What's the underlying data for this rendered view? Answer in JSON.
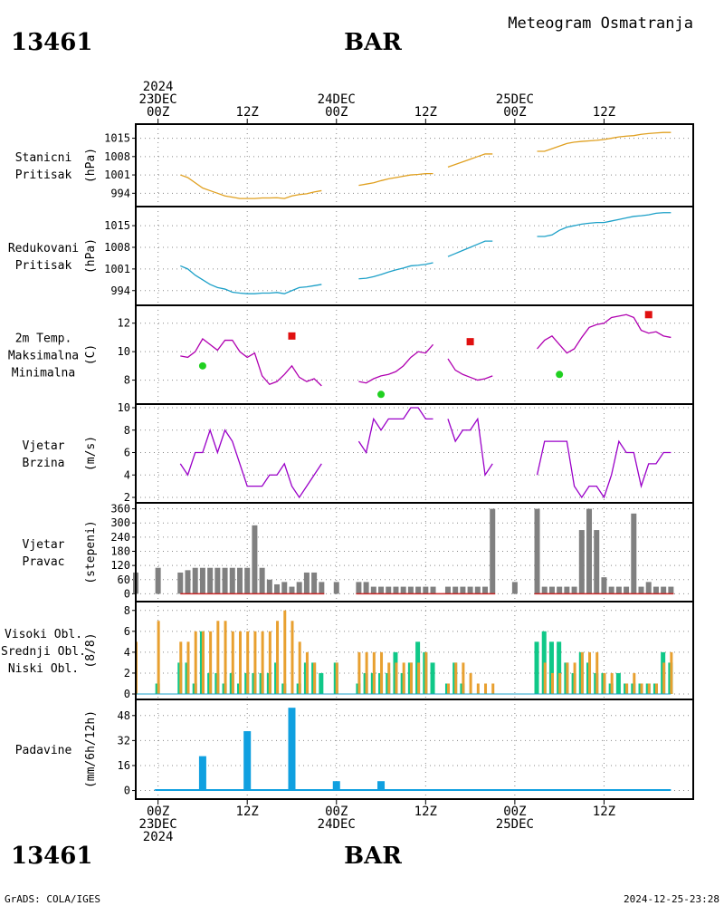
{
  "header": {
    "station_id": "13461",
    "station_name": "BAR",
    "title": "Meteogram Osmatranja"
  },
  "footer": {
    "station_id": "13461",
    "station_name": "BAR",
    "credit": "GrADS: COLA/IGES",
    "timestamp": "2024-12-25-23:28"
  },
  "time_axis": {
    "top_labels": [
      {
        "hour": 0,
        "lines": [
          "2024",
          "23DEC",
          "00Z"
        ]
      },
      {
        "hour": 12,
        "lines": [
          "12Z"
        ]
      },
      {
        "hour": 24,
        "lines": [
          "24DEC",
          "00Z"
        ]
      },
      {
        "hour": 36,
        "lines": [
          "12Z"
        ]
      },
      {
        "hour": 48,
        "lines": [
          "25DEC",
          "00Z"
        ]
      },
      {
        "hour": 60,
        "lines": [
          "12Z"
        ]
      }
    ],
    "bottom_labels": [
      {
        "hour": 0,
        "lines": [
          "00Z",
          "23DEC",
          "2024"
        ]
      },
      {
        "hour": 12,
        "lines": [
          "12Z"
        ]
      },
      {
        "hour": 24,
        "lines": [
          "00Z",
          "24DEC"
        ]
      },
      {
        "hour": 36,
        "lines": [
          "12Z"
        ]
      },
      {
        "hour": 48,
        "lines": [
          "00Z",
          "25DEC"
        ]
      },
      {
        "hour": 60,
        "lines": [
          "12Z"
        ]
      }
    ]
  },
  "colors": {
    "pressure_station": "#e0a020",
    "pressure_reduced": "#1ca0c8",
    "temp_line": "#b000b0",
    "tmax": "#e01010",
    "tmin": "#20d020",
    "wind": "#9a00c8",
    "direction": "#808080",
    "direction_base": "#c82828",
    "cloud_high": "#1ca0c8",
    "cloud_mid": "#10c888",
    "cloud_low": "#e8a030",
    "precip": "#10a0e0"
  },
  "chart_data": [
    {
      "type": "line",
      "id": "station_pressure",
      "panel_labels": [
        "Stanicni",
        "Pritisak"
      ],
      "ylabel": "(hPa)",
      "yticks": [
        994,
        1001,
        1008,
        1015
      ],
      "ylim": [
        991,
        1019
      ],
      "series": [
        {
          "x": [
            3,
            4,
            5,
            6,
            7,
            8,
            9,
            10,
            11,
            12,
            13,
            14,
            15,
            16,
            17,
            18,
            19,
            20,
            21,
            22,
            27,
            28,
            29,
            30,
            31,
            32,
            33,
            34,
            35,
            36,
            37,
            39,
            40,
            41,
            42,
            43,
            44,
            45,
            51,
            52,
            53,
            54,
            55,
            56,
            57,
            58,
            59,
            60,
            61,
            62,
            63,
            64,
            65,
            66,
            67,
            68,
            69
          ],
          "y": [
            1001,
            1000,
            998,
            996,
            995,
            994,
            993,
            992.5,
            992,
            992,
            992,
            992.2,
            992.2,
            992.3,
            992,
            993,
            993.5,
            993.8,
            994.5,
            995,
            997,
            997.5,
            998,
            998.8,
            999.5,
            1000,
            1000.5,
            1001,
            1001.2,
            1001.5,
            1001.5,
            1004,
            1005,
            1006,
            1007,
            1008,
            1009,
            1009,
            1010,
            1010,
            1011,
            1012,
            1013,
            1013.5,
            1013.8,
            1014,
            1014.2,
            1014.5,
            1015,
            1015.5,
            1015.8,
            1016,
            1016.5,
            1016.8,
            1017,
            1017.2,
            1017.2
          ]
        }
      ]
    },
    {
      "type": "line",
      "id": "reduced_pressure",
      "panel_labels": [
        "Redukovani",
        "Pritisak"
      ],
      "ylabel": "(hPa)",
      "yticks": [
        994,
        1001,
        1008,
        1015
      ],
      "ylim": [
        991,
        1020
      ],
      "series": [
        {
          "x": [
            3,
            4,
            5,
            6,
            7,
            8,
            9,
            10,
            11,
            12,
            13,
            14,
            15,
            16,
            17,
            18,
            19,
            20,
            21,
            22,
            27,
            28,
            29,
            30,
            31,
            32,
            33,
            34,
            35,
            36,
            37,
            39,
            40,
            41,
            42,
            43,
            44,
            45,
            51,
            52,
            53,
            54,
            55,
            56,
            57,
            58,
            59,
            60,
            61,
            62,
            63,
            64,
            65,
            66,
            67,
            68,
            69
          ],
          "y": [
            1002,
            1001,
            999,
            997.5,
            996,
            995,
            994.5,
            993.5,
            993.2,
            993,
            993,
            993.2,
            993.2,
            993.4,
            993,
            994,
            995,
            995.2,
            995.6,
            996,
            997.8,
            998,
            998.5,
            999.2,
            1000,
            1000.7,
            1001.3,
            1002,
            1002.2,
            1002.5,
            1003,
            1005,
            1006,
            1007,
            1008,
            1009,
            1010,
            1010,
            1011.5,
            1011.5,
            1012,
            1013.5,
            1014.5,
            1015,
            1015.5,
            1015.8,
            1016,
            1016,
            1016.5,
            1017,
            1017.5,
            1018,
            1018.2,
            1018.5,
            1019,
            1019.2,
            1019.2
          ]
        }
      ]
    },
    {
      "type": "line",
      "id": "temperature",
      "panel_labels": [
        "2m Temp.",
        "Maksimalna",
        "Minimalna"
      ],
      "ylabel": "(C)",
      "yticks": [
        8,
        10,
        12
      ],
      "ylim": [
        6.7,
        13.0
      ],
      "series": [
        {
          "x": [
            3,
            4,
            5,
            6,
            7,
            8,
            9,
            10,
            11,
            12,
            13,
            14,
            15,
            16,
            17,
            18,
            19,
            20,
            21,
            22,
            27,
            28,
            29,
            30,
            31,
            32,
            33,
            34,
            35,
            36,
            37,
            39,
            40,
            41,
            42,
            43,
            44,
            45,
            51,
            52,
            53,
            54,
            55,
            56,
            57,
            58,
            59,
            60,
            61,
            62,
            63,
            64,
            65,
            66,
            67,
            68,
            69
          ],
          "y": [
            9.7,
            9.6,
            10.0,
            10.9,
            10.5,
            10.1,
            10.8,
            10.8,
            10.0,
            9.6,
            9.9,
            8.3,
            7.7,
            7.9,
            8.4,
            9.0,
            8.2,
            7.9,
            8.1,
            7.6,
            7.9,
            7.8,
            8.1,
            8.3,
            8.4,
            8.6,
            9.0,
            9.6,
            10.0,
            9.9,
            10.5,
            9.5,
            8.7,
            8.4,
            8.2,
            8.0,
            8.1,
            8.3,
            10.2,
            10.8,
            11.1,
            10.5,
            9.9,
            10.2,
            11.0,
            11.7,
            11.9,
            12.0,
            12.4,
            12.5,
            12.6,
            12.4,
            11.5,
            11.3,
            11.4,
            11.1,
            11.0
          ]
        },
        {
          "name": "Maksimalna",
          "x": [
            18,
            42,
            66
          ],
          "y": [
            11.1,
            10.7,
            12.6
          ]
        },
        {
          "name": "Minimalna",
          "x": [
            6,
            30,
            54
          ],
          "y": [
            9.0,
            7.0,
            8.4
          ]
        }
      ]
    },
    {
      "type": "line",
      "id": "wind_speed",
      "panel_labels": [
        "Vjetar",
        "Brzina"
      ],
      "ylabel": "(m/s)",
      "yticks": [
        2,
        4,
        6,
        8,
        10
      ],
      "ylim": [
        2,
        10
      ],
      "series": [
        {
          "segments": [
            {
              "x": [
                3,
                4,
                5,
                6,
                7,
                8,
                9,
                10,
                11,
                12,
                13,
                14,
                15,
                16,
                17,
                18,
                19,
                20,
                21,
                22
              ],
              "y": [
                5,
                4,
                6,
                6,
                8,
                6,
                8,
                7,
                5,
                3,
                3,
                3,
                4,
                4,
                5,
                3,
                2,
                3,
                4,
                5
              ]
            },
            {
              "x": [
                27,
                28,
                29,
                30,
                31,
                32,
                33,
                34,
                35,
                36,
                37
              ],
              "y": [
                7,
                6,
                9,
                8,
                9,
                9,
                9,
                10,
                10,
                9,
                9
              ]
            },
            {
              "x": [
                39,
                40,
                41,
                42,
                43,
                44,
                45
              ],
              "y": [
                9,
                7,
                8,
                8,
                9,
                4,
                5
              ]
            },
            {
              "x": [
                51,
                52,
                53,
                54,
                55,
                56,
                57,
                58,
                59,
                60,
                61,
                62,
                63,
                64,
                65,
                66,
                67,
                68,
                69
              ],
              "y": [
                4,
                7,
                7,
                7,
                7,
                3,
                2,
                3,
                3,
                2,
                4,
                7,
                6,
                6,
                3,
                5,
                5,
                6,
                6
              ]
            }
          ]
        }
      ]
    },
    {
      "type": "bar",
      "id": "wind_direction",
      "panel_labels": [
        "Vjetar",
        "Pravac"
      ],
      "ylabel": "(stepeni)",
      "yticks": [
        0,
        60,
        120,
        180,
        240,
        300,
        360
      ],
      "ylim": [
        -10,
        370
      ],
      "x": [
        -3,
        0,
        3,
        4,
        5,
        6,
        7,
        8,
        9,
        10,
        11,
        12,
        13,
        14,
        15,
        16,
        17,
        18,
        19,
        20,
        21,
        22,
        24,
        27,
        28,
        29,
        30,
        31,
        32,
        33,
        34,
        35,
        36,
        37,
        39,
        40,
        41,
        42,
        43,
        44,
        45,
        48,
        51,
        52,
        53,
        54,
        55,
        56,
        57,
        58,
        59,
        60,
        61,
        62,
        63,
        64,
        65,
        66,
        67,
        68,
        69
      ],
      "values": [
        90,
        110,
        90,
        100,
        110,
        110,
        110,
        110,
        110,
        110,
        110,
        110,
        290,
        110,
        60,
        40,
        50,
        30,
        50,
        90,
        90,
        50,
        50,
        50,
        50,
        30,
        30,
        30,
        30,
        30,
        30,
        30,
        30,
        30,
        30,
        30,
        30,
        30,
        30,
        30,
        360,
        50,
        360,
        30,
        30,
        30,
        30,
        30,
        270,
        360,
        270,
        70,
        30,
        30,
        30,
        340,
        30,
        50,
        30,
        30,
        30
      ]
    },
    {
      "type": "bar",
      "id": "clouds",
      "panel_labels": [
        "Visoki Obl.",
        "Srednji Obl.",
        "Niski Obl."
      ],
      "ylabel": "(8/8)",
      "yticks": [
        0,
        2,
        4,
        6,
        8
      ],
      "ylim": [
        0,
        8.5
      ],
      "x": [
        -3,
        0,
        3,
        4,
        5,
        6,
        7,
        8,
        9,
        10,
        11,
        12,
        13,
        14,
        15,
        16,
        17,
        18,
        19,
        20,
        21,
        22,
        24,
        27,
        28,
        29,
        30,
        31,
        32,
        33,
        34,
        35,
        36,
        37,
        39,
        40,
        41,
        42,
        43,
        44,
        45,
        48,
        51,
        52,
        53,
        54,
        55,
        56,
        57,
        58,
        59,
        60,
        61,
        62,
        63,
        64,
        65,
        66,
        67,
        68,
        69
      ],
      "series": [
        {
          "name": "Visoki Obl.",
          "values": [
            0,
            0,
            0,
            0,
            0,
            0,
            0,
            0,
            0,
            0,
            0,
            0,
            0,
            0,
            0,
            0,
            0,
            0,
            0,
            0,
            0,
            0,
            0,
            0,
            0,
            0,
            0,
            0,
            0,
            0,
            0,
            0,
            0,
            0,
            0,
            0,
            0,
            0,
            0,
            0,
            0,
            0,
            0,
            0,
            0,
            0,
            0,
            0,
            0,
            0,
            0,
            0,
            0,
            0,
            0,
            0,
            0,
            0,
            0,
            0,
            0
          ]
        },
        {
          "name": "Srednji Obl.",
          "values": [
            0,
            1,
            3,
            3,
            1,
            6,
            2,
            2,
            1,
            2,
            1,
            2,
            2,
            2,
            2,
            3,
            1,
            0,
            1,
            3,
            3,
            2,
            3,
            1,
            2,
            2,
            2,
            2,
            4,
            2,
            3,
            5,
            4,
            3,
            1,
            3,
            1,
            0,
            0,
            0,
            0,
            0,
            5,
            6,
            5,
            5,
            3,
            2,
            4,
            3,
            2,
            2,
            1,
            2,
            1,
            1,
            1,
            1,
            1,
            4,
            3
          ]
        },
        {
          "name": "Niski Obl.",
          "values": [
            5,
            7,
            5,
            5,
            6,
            6,
            6,
            7,
            7,
            6,
            6,
            6,
            6,
            6,
            6,
            7,
            8,
            7,
            5,
            4,
            3,
            0,
            3,
            4,
            4,
            4,
            4,
            3,
            3,
            3,
            3,
            3,
            4,
            0,
            1,
            3,
            3,
            2,
            1,
            1,
            1,
            0,
            0,
            3,
            2,
            2,
            3,
            3,
            4,
            4,
            4,
            2,
            2,
            0,
            1,
            2,
            1,
            1,
            1,
            3,
            4
          ]
        }
      ]
    },
    {
      "type": "bar",
      "id": "precipitation",
      "panel_labels": [
        "Padavine"
      ],
      "ylabel": "(mm/6h/12h)",
      "yticks": [
        0,
        16,
        32,
        48
      ],
      "ylim": [
        -2,
        56
      ],
      "x": [
        0,
        6,
        12,
        18,
        24,
        30,
        36,
        42,
        48,
        54,
        60,
        66
      ],
      "values": [
        0.8,
        22,
        38,
        53,
        6,
        6,
        0,
        0,
        0,
        0,
        0,
        0
      ]
    }
  ]
}
